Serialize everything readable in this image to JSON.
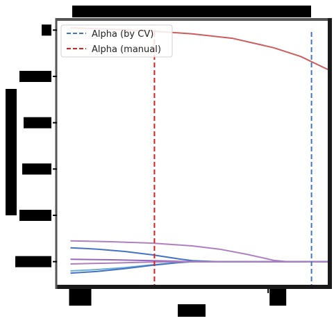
{
  "chart_data": {
    "type": "line",
    "title": "",
    "xlabel": "",
    "ylabel": "",
    "xlim": [
      0,
      1
    ],
    "ylim": [
      -0.5,
      5.2
    ],
    "xticks": [
      {
        "value": 0.05,
        "label": ""
      },
      {
        "value": 0.78,
        "label": ""
      }
    ],
    "yticks": [
      {
        "value": 0,
        "label": ""
      },
      {
        "value": 1,
        "label": ""
      },
      {
        "value": 2,
        "label": ""
      },
      {
        "value": 3,
        "label": ""
      },
      {
        "value": 4,
        "label": ""
      },
      {
        "value": 5,
        "label": ""
      }
    ],
    "vlines": [
      {
        "name": "Alpha (by CV)",
        "x": 0.94,
        "color": "#4472c4",
        "style": "dashed"
      },
      {
        "name": "Alpha (manual)",
        "x": 0.36,
        "color": "#e41a1c",
        "style": "dashed"
      }
    ],
    "series": [
      {
        "color": "#cd5c5c",
        "x": [
          0.05,
          0.2,
          0.35,
          0.5,
          0.65,
          0.8,
          0.9,
          1.0
        ],
        "y": [
          5.05,
          5.02,
          4.98,
          4.92,
          4.82,
          4.62,
          4.43,
          4.15
        ]
      },
      {
        "color": "#b07fc0",
        "x": [
          0.05,
          0.2,
          0.35,
          0.5,
          0.6,
          0.7,
          0.8,
          0.85,
          1.0
        ],
        "y": [
          0.45,
          0.43,
          0.4,
          0.34,
          0.27,
          0.16,
          0.03,
          0.0,
          0.0
        ]
      },
      {
        "color": "#4472c4",
        "x": [
          0.05,
          0.15,
          0.25,
          0.35,
          0.45,
          0.5,
          0.6,
          1.0
        ],
        "y": [
          0.3,
          0.27,
          0.22,
          0.15,
          0.06,
          0.02,
          0.0,
          0.0
        ]
      },
      {
        "color": "#9467bd",
        "x": [
          0.05,
          0.2,
          0.35,
          0.5,
          1.0
        ],
        "y": [
          0.05,
          0.04,
          0.02,
          0.0,
          0.0
        ]
      },
      {
        "color": "#6baed6",
        "x": [
          0.05,
          0.15,
          0.25,
          0.35,
          0.45,
          0.5,
          1.0
        ],
        "y": [
          -0.2,
          -0.17,
          -0.13,
          -0.07,
          -0.02,
          0.0,
          0.0
        ]
      },
      {
        "color": "#4472c4",
        "x": [
          0.05,
          0.15,
          0.25,
          0.35,
          0.45,
          0.5,
          1.0
        ],
        "y": [
          -0.25,
          -0.21,
          -0.15,
          -0.08,
          -0.02,
          0.0,
          0.0
        ]
      },
      {
        "color": "#b07fc0",
        "x": [
          0.05,
          0.2,
          0.35,
          0.5,
          1.0
        ],
        "y": [
          -0.05,
          -0.03,
          -0.01,
          0.0,
          0.0
        ]
      }
    ],
    "legend": {
      "position": "top-left",
      "entries": [
        "Alpha (by CV)",
        "Alpha (manual)"
      ]
    },
    "colors": {
      "frame": "#1a1a1a",
      "frame_accent": "#555555",
      "redacted": "#000000"
    }
  }
}
